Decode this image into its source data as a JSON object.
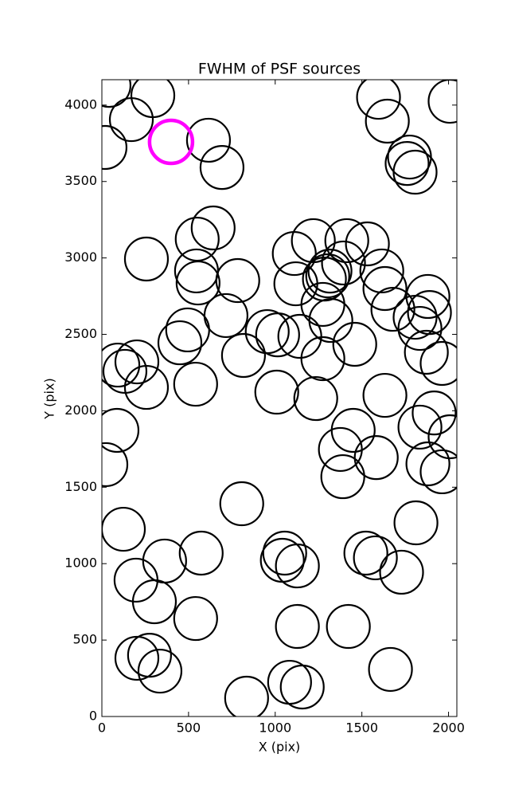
{
  "chart_data": {
    "type": "scatter",
    "title": "FWHM of PSF sources",
    "xlabel": "X (pix)",
    "ylabel": "Y (pix)",
    "xlim": [
      0,
      2048
    ],
    "ylim": [
      0,
      4166
    ],
    "xticks": [
      0,
      500,
      1000,
      1500,
      2000
    ],
    "yticks": [
      0,
      500,
      1000,
      1500,
      2000,
      2500,
      3000,
      3500,
      4000
    ],
    "grid": false,
    "series": [
      {
        "color": "#000000",
        "x": [
          41,
          294,
          170,
          18,
          615,
          693,
          1596,
          1647,
          2009,
          1775,
          1761,
          1807,
          642,
          550,
          257,
          546,
          555,
          784,
          716,
          495,
          450,
          817,
          541,
          92,
          202,
          133,
          257,
          87,
          23,
          1110,
          1220,
          1119,
          1413,
          1532,
          1394,
          1303,
          1284,
          1316,
          1615,
          1633,
          1679,
          1275,
          1321,
          1807,
          1890,
          1881,
          1835,
          1872,
          1963,
          1917,
          1835,
          2009,
          1881,
          1963,
          1633,
          1459,
          1275,
          1142,
          1014,
          954,
          1009,
          1234,
          1450,
          1376,
          1583,
          1390,
          807,
          124,
          1812,
          362,
          573,
          1055,
          1041,
          1128,
          1523,
          1578,
          1729,
          197,
          303,
          541,
          1128,
          1422,
          202,
          275,
          335,
          1083,
          1156,
          1665,
          835
        ],
        "y": [
          4129,
          4062,
          3905,
          3723,
          3770,
          3592,
          4051,
          3895,
          4025,
          3660,
          3618,
          3561,
          3196,
          3123,
          2993,
          2915,
          2836,
          2852,
          2623,
          2529,
          2445,
          2362,
          2174,
          2299,
          2320,
          2258,
          2153,
          1872,
          1648,
          3029,
          3113,
          2831,
          3113,
          3092,
          2967,
          2883,
          2862,
          2914,
          2915,
          2800,
          2664,
          2696,
          2591,
          2612,
          2643,
          2748,
          2539,
          2383,
          2310,
          1986,
          1893,
          1830,
          1653,
          1601,
          2101,
          2435,
          2341,
          2487,
          2497,
          2518,
          2122,
          2080,
          1872,
          1747,
          1694,
          1569,
          1392,
          1225,
          1267,
          1017,
          1069,
          1069,
          1022,
          985,
          1069,
          1038,
          944,
          892,
          751,
          641,
          589,
          589,
          381,
          401,
          297,
          224,
          193,
          308,
          120
        ]
      },
      {
        "color": "#ff00ff",
        "x": [
          399
        ],
        "y": [
          3759
        ]
      }
    ]
  }
}
